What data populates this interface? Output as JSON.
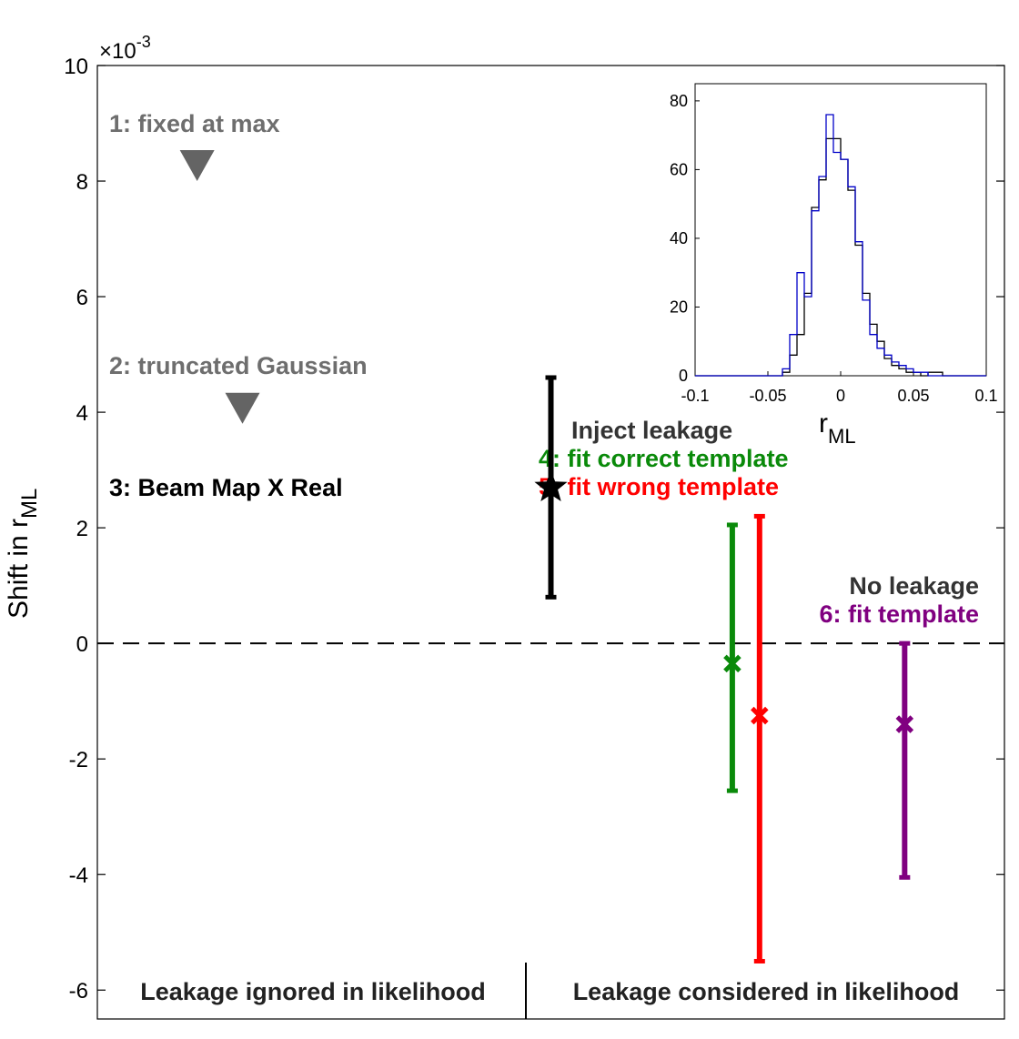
{
  "chart_data": [
    {
      "type": "scatter",
      "ylabel": "Shift in r",
      "ylabel_sub": "ML",
      "y_multiplier": "×10",
      "y_multiplier_exp": "-3",
      "ylim": [
        -6.5,
        10
      ],
      "xlim": [
        0,
        1
      ],
      "yticks": [
        "-6",
        "-4",
        "-2",
        "0",
        "2",
        "4",
        "6",
        "8",
        "10"
      ],
      "ytick_values": [
        -6,
        -4,
        -2,
        0,
        2,
        4,
        6,
        8,
        10
      ],
      "zero_line": "dashed",
      "grid": false,
      "regions": [
        "Leakage ignored in likelihood",
        "Leakage considered in likelihood"
      ],
      "group_labels": {
        "inject": "Inject leakage",
        "no_leakage": "No leakage"
      },
      "series": [
        {
          "name": "1: fixed at max",
          "marker": "triangle-down",
          "color": "#646464",
          "x": 0.11,
          "y": 8.3
        },
        {
          "name": "2: truncated Gaussian",
          "marker": "triangle-down",
          "color": "#646464",
          "x": 0.16,
          "y": 4.1
        },
        {
          "name": "3: Beam Map X Real",
          "marker": "star",
          "color": "#000000",
          "x": 0.5,
          "y": 2.7,
          "ymin": 0.8,
          "ymax": 4.6
        },
        {
          "name": "4: fit correct template",
          "marker": "x",
          "color": "#0a8a0a",
          "x": 0.7,
          "y": -0.35,
          "ymin": -2.55,
          "ymax": 2.05
        },
        {
          "name": "5: fit wrong template",
          "marker": "x",
          "color": "#ff0000",
          "x": 0.73,
          "y": -1.25,
          "ymin": -5.5,
          "ymax": 2.2
        },
        {
          "name": "6: fit template",
          "marker": "x",
          "color": "#800080",
          "x": 0.89,
          "y": -1.4,
          "ymin": -4.05,
          "ymax": 0.0
        }
      ]
    },
    {
      "type": "line",
      "title": "",
      "xlabel": "r",
      "xlabel_sub": "ML",
      "xlim": [
        -0.1,
        0.1
      ],
      "ylim": [
        0,
        85
      ],
      "xticks": [
        "-0.1",
        "-0.05",
        "0",
        "0.05",
        "0.1"
      ],
      "xtick_values": [
        -0.1,
        -0.05,
        0,
        0.05,
        0.1
      ],
      "yticks": [
        "0",
        "20",
        "40",
        "60",
        "80"
      ],
      "ytick_values": [
        0,
        20,
        40,
        60,
        80
      ],
      "bin_edges": [
        -0.1,
        -0.09,
        -0.08,
        -0.07,
        -0.06,
        -0.05,
        -0.04,
        -0.035,
        -0.03,
        -0.025,
        -0.02,
        -0.015,
        -0.01,
        -0.005,
        0,
        0.005,
        0.01,
        0.015,
        0.02,
        0.025,
        0.03,
        0.035,
        0.04,
        0.045,
        0.05,
        0.055,
        0.06,
        0.07,
        0.08,
        0.09,
        0.1
      ],
      "series": [
        {
          "color": "#000000",
          "values": [
            0,
            0,
            0,
            0,
            0,
            0,
            1,
            6,
            12,
            24,
            49,
            57,
            69,
            69,
            63,
            54,
            38,
            24,
            15,
            10,
            5,
            3,
            2,
            1,
            1,
            0,
            1,
            0,
            0,
            0
          ]
        },
        {
          "color": "#0000c8",
          "values": [
            0,
            0,
            0,
            0,
            0,
            0,
            2,
            12,
            30,
            23,
            48,
            58,
            76,
            65,
            63,
            55,
            39,
            22,
            12,
            8,
            6,
            4,
            3,
            2,
            1,
            1,
            0,
            0,
            0,
            0
          ]
        }
      ]
    }
  ]
}
